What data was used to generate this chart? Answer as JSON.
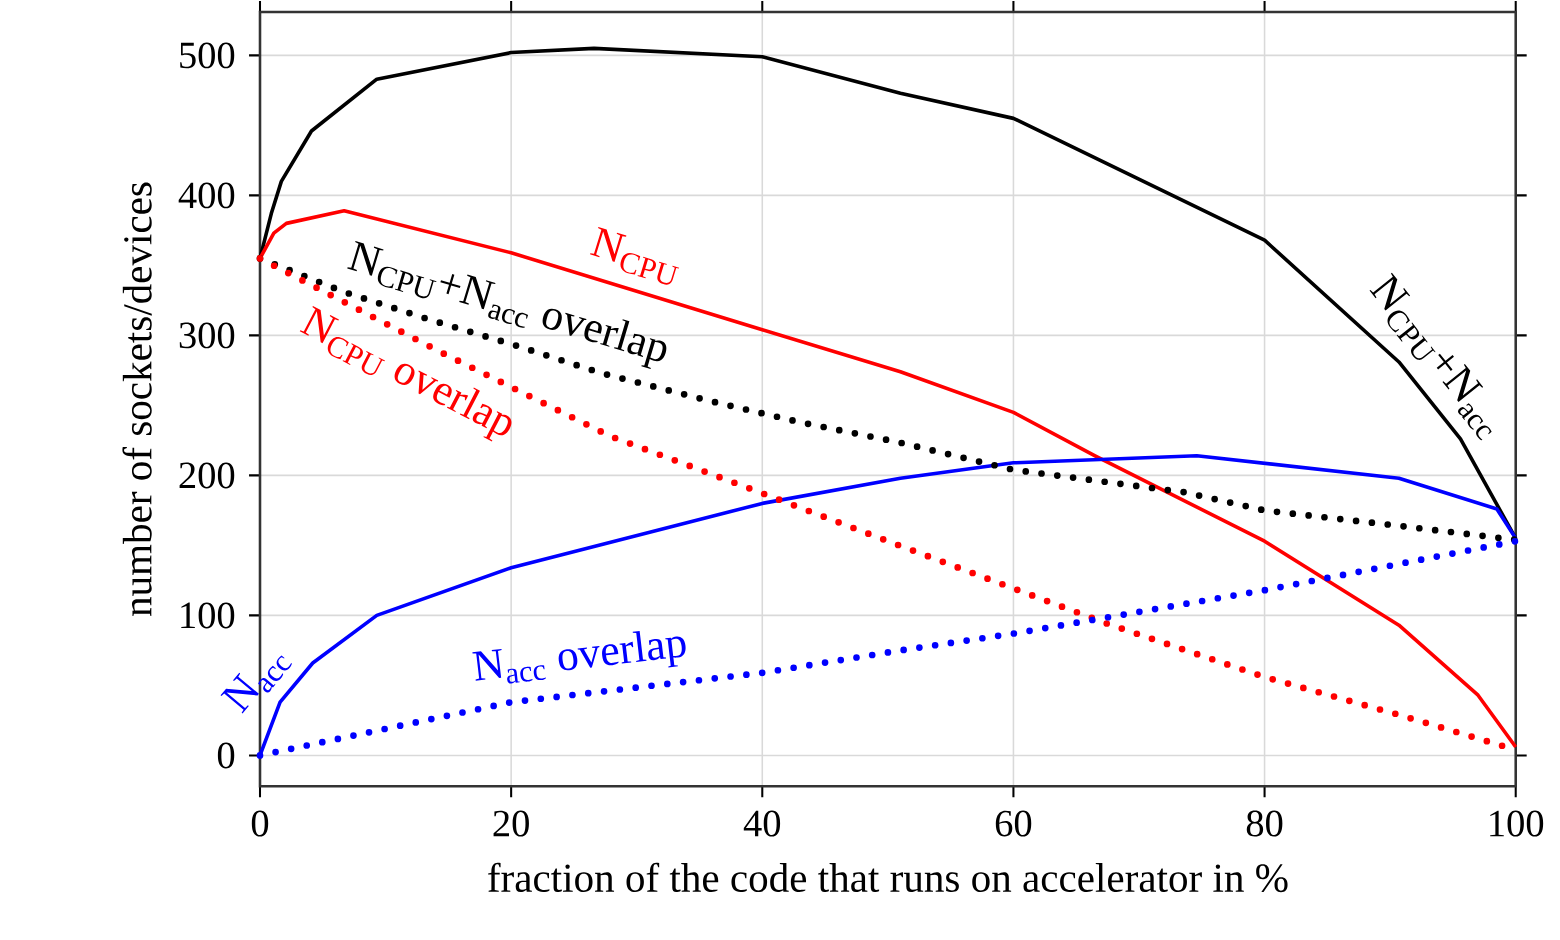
{
  "chart_data": {
    "type": "line",
    "xlabel": "fraction of the code that runs on accelerator in %",
    "ylabel": "number of sockets/devices",
    "xlim": [
      0,
      100
    ],
    "ylim": [
      -22,
      531
    ],
    "xticks": [
      0,
      20,
      40,
      60,
      80,
      100
    ],
    "yticks": [
      0,
      100,
      200,
      300,
      400,
      500
    ],
    "grid": true,
    "series": [
      {
        "name": "N$_{CPU}$+N$_{acc}$",
        "color": "#000000",
        "line_style": "solid",
        "x": [
          0,
          0.9,
          1.7,
          4.1,
          9.3,
          20,
          26.6,
          40,
          51,
          60,
          80,
          90.7,
          95.6,
          100
        ],
        "values": [
          355,
          387,
          410,
          446,
          483,
          502,
          505,
          499,
          473,
          455,
          368,
          281,
          226,
          155
        ]
      },
      {
        "name": "N$_{CPU}$",
        "color": "#ff0000",
        "line_style": "solid",
        "x": [
          0,
          1.1,
          2.1,
          6.7,
          20,
          40,
          51,
          60,
          66.5,
          80,
          90.7,
          97,
          100
        ],
        "values": [
          355,
          373,
          380,
          389,
          359,
          304,
          274,
          245,
          214,
          153,
          93,
          43,
          6
        ]
      },
      {
        "name": "N$_{acc}$",
        "color": "#0000ff",
        "line_style": "solid",
        "x": [
          0,
          1.6,
          4.2,
          9.3,
          20,
          40,
          51,
          60,
          74.6,
          90.7,
          98.5,
          100
        ],
        "values": [
          0,
          38,
          66,
          100,
          134,
          180,
          198,
          209,
          214,
          198,
          176,
          155
        ]
      },
      {
        "name": "N$_{CPU}$+N$_{acc}$ overlap",
        "color": "#000000",
        "line_style": "dotted",
        "x": [
          0,
          6.7,
          13.6,
          20.3,
          27.2,
          35.9,
          43,
          50.7,
          60,
          73.6,
          80,
          90.7,
          100
        ],
        "values": [
          355,
          331,
          311,
          293,
          273,
          253,
          238,
          224,
          204,
          188,
          175,
          164,
          154
        ]
      },
      {
        "name": "N$_{CPU}$ overlap",
        "color": "#ff0000",
        "line_style": "dotted",
        "x": [
          0,
          14.4,
          27.9,
          38.9,
          50.9,
          67.5,
          80,
          90.7,
          100
        ],
        "values": [
          355,
          288,
          228,
          191,
          150,
          94,
          56,
          29,
          4
        ]
      },
      {
        "name": "N$_{acc}$ overlap",
        "color": "#0000ff",
        "line_style": "dotted",
        "x": [
          0,
          20,
          40,
          51,
          60,
          80,
          100
        ],
        "values": [
          0,
          38,
          59,
          75,
          87,
          118,
          153
        ]
      }
    ]
  }
}
